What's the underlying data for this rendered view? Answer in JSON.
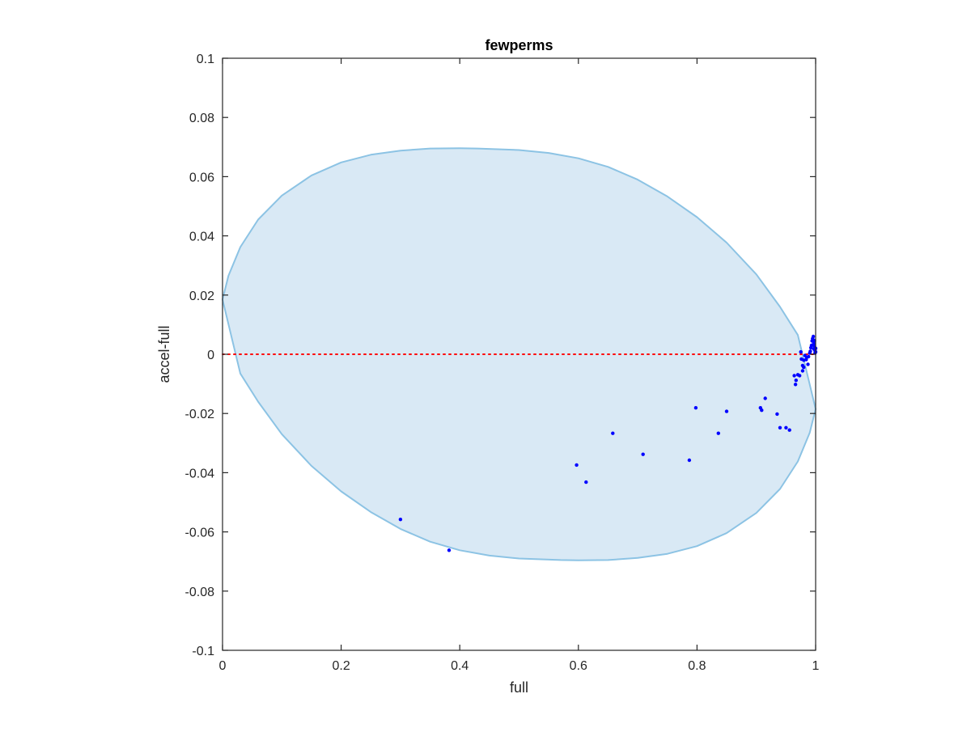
{
  "chart_data": {
    "type": "scatter",
    "title": "fewperms",
    "xlabel": "full",
    "ylabel": "accel-full",
    "xlim": [
      0,
      1
    ],
    "ylim": [
      -0.1,
      0.1
    ],
    "xticks": [
      0,
      0.2,
      0.4,
      0.6,
      0.8,
      1
    ],
    "xtick_labels": [
      "0",
      "0.2",
      "0.4",
      "0.6",
      "0.8",
      "1"
    ],
    "yticks": [
      -0.1,
      -0.08,
      -0.06,
      -0.04,
      -0.02,
      0,
      0.02,
      0.04,
      0.06,
      0.08,
      0.1
    ],
    "ytick_labels": [
      "-0.1",
      "-0.08",
      "-0.06",
      "-0.04",
      "-0.02",
      "0",
      "0.02",
      "0.04",
      "0.06",
      "0.08",
      "0.1"
    ],
    "grid": false,
    "box": true,
    "reference_line": {
      "y": 0,
      "style": "dotted",
      "color": "#ff0000"
    },
    "region": {
      "shape": "ellipse",
      "fill": "#d9e9f5",
      "stroke": "#8cc3e4",
      "points": [
        [
          0,
          0.0185
        ],
        [
          0.01,
          0.0265
        ],
        [
          0.03,
          0.0362
        ],
        [
          0.06,
          0.0455
        ],
        [
          0.1,
          0.0536
        ],
        [
          0.15,
          0.0604
        ],
        [
          0.2,
          0.0648
        ],
        [
          0.25,
          0.0674
        ],
        [
          0.3,
          0.0688
        ],
        [
          0.35,
          0.0695
        ],
        [
          0.4,
          0.0696
        ],
        [
          0.43,
          0.0695
        ],
        [
          0.5,
          0.069
        ],
        [
          0.55,
          0.068
        ],
        [
          0.6,
          0.0662
        ],
        [
          0.65,
          0.0633
        ],
        [
          0.7,
          0.059
        ],
        [
          0.75,
          0.0533
        ],
        [
          0.8,
          0.0463
        ],
        [
          0.85,
          0.0377
        ],
        [
          0.9,
          0.027
        ],
        [
          0.94,
          0.016
        ],
        [
          0.97,
          0.0065
        ],
        [
          1.0,
          -0.0185
        ],
        [
          0.99,
          -0.0265
        ],
        [
          0.97,
          -0.0362
        ],
        [
          0.94,
          -0.0455
        ],
        [
          0.9,
          -0.0536
        ],
        [
          0.85,
          -0.0604
        ],
        [
          0.8,
          -0.0648
        ],
        [
          0.75,
          -0.0674
        ],
        [
          0.7,
          -0.0688
        ],
        [
          0.65,
          -0.0695
        ],
        [
          0.6,
          -0.0696
        ],
        [
          0.57,
          -0.0695
        ],
        [
          0.5,
          -0.069
        ],
        [
          0.45,
          -0.068
        ],
        [
          0.4,
          -0.0662
        ],
        [
          0.35,
          -0.0633
        ],
        [
          0.3,
          -0.059
        ],
        [
          0.25,
          -0.0533
        ],
        [
          0.2,
          -0.0463
        ],
        [
          0.15,
          -0.0377
        ],
        [
          0.1,
          -0.027
        ],
        [
          0.06,
          -0.016
        ],
        [
          0.03,
          -0.0065
        ],
        [
          0,
          0.0185
        ]
      ]
    },
    "series": [
      {
        "color": "#0000ff",
        "points": [
          [
            0.3,
            -0.0558
          ],
          [
            0.382,
            -0.0662
          ],
          [
            0.597,
            -0.0374
          ],
          [
            0.613,
            -0.0432
          ],
          [
            0.658,
            -0.0267
          ],
          [
            0.709,
            -0.0338
          ],
          [
            0.787,
            -0.0358
          ],
          [
            0.798,
            -0.0181
          ],
          [
            0.836,
            -0.0267
          ],
          [
            0.85,
            -0.0193
          ],
          [
            0.907,
            -0.0181
          ],
          [
            0.909,
            -0.0189
          ],
          [
            0.915,
            -0.0149
          ],
          [
            0.935,
            -0.0202
          ],
          [
            0.94,
            -0.0248
          ],
          [
            0.95,
            -0.0248
          ],
          [
            0.956,
            -0.0256
          ],
          [
            0.964,
            -0.0072
          ],
          [
            0.966,
            -0.0102
          ],
          [
            0.967,
            -0.0088
          ],
          [
            0.97,
            -0.0069
          ],
          [
            0.973,
            -0.0072
          ],
          [
            0.975,
            0.0008
          ],
          [
            0.976,
            -0.0016
          ],
          [
            0.978,
            -0.0038
          ],
          [
            0.978,
            -0.0056
          ],
          [
            0.98,
            -0.0044
          ],
          [
            0.98,
            -0.002
          ],
          [
            0.982,
            -0.0004
          ],
          [
            0.984,
            -0.0018
          ],
          [
            0.985,
            -0.001
          ],
          [
            0.987,
            -0.0034
          ],
          [
            0.988,
            -0.0008
          ],
          [
            0.99,
            0.0004
          ],
          [
            0.991,
            0.001
          ],
          [
            0.992,
            0.0022
          ],
          [
            0.993,
            0.003
          ],
          [
            0.994,
            0.0045
          ],
          [
            0.995,
            0.0053
          ],
          [
            0.996,
            0.006
          ],
          [
            0.997,
            0.0036
          ],
          [
            0.997,
            0.0018
          ],
          [
            0.998,
            0.0046
          ],
          [
            0.998,
            0.0026
          ],
          [
            0.999,
            0.0012
          ],
          [
            0.999,
            0.0004
          ],
          [
            1.0,
            0.002
          ],
          [
            1.0,
            0.0008
          ]
        ]
      }
    ]
  }
}
